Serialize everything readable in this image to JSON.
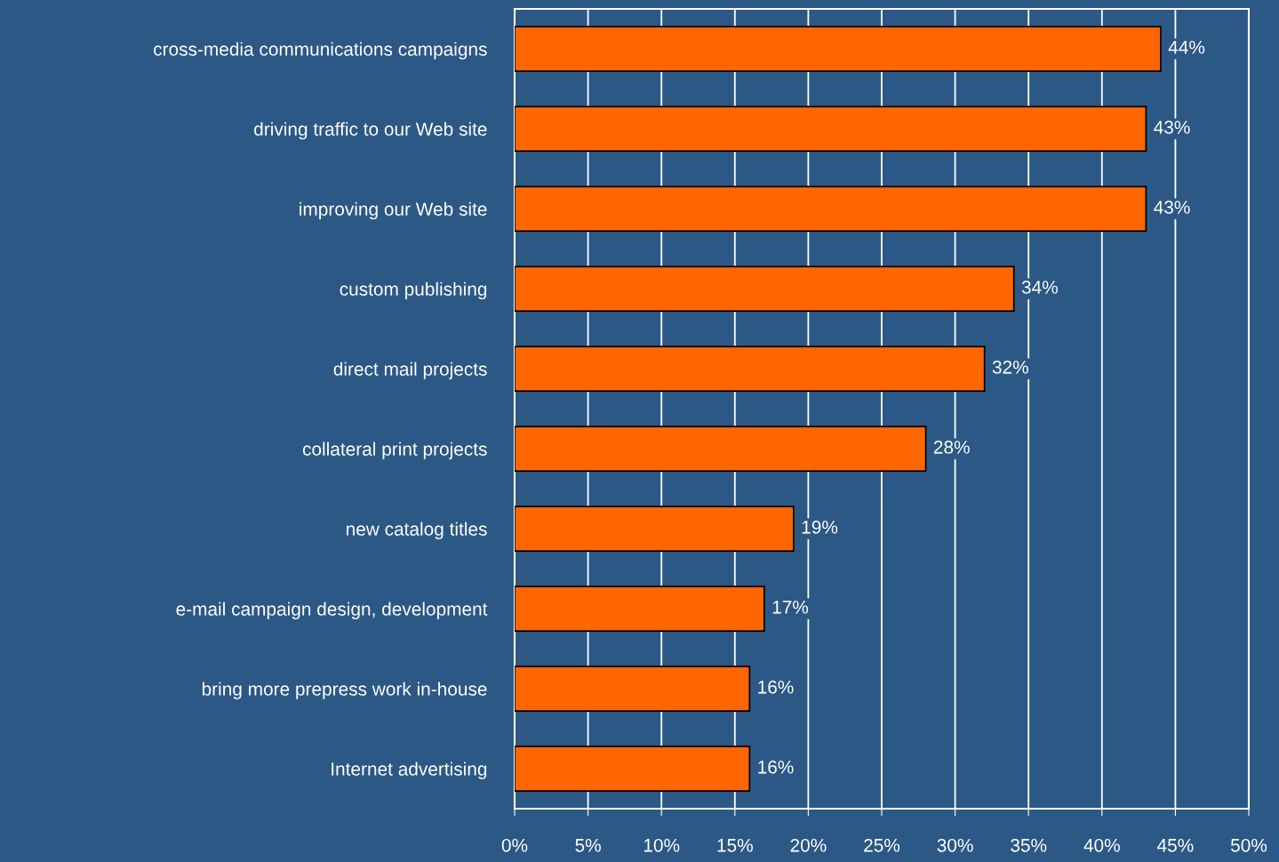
{
  "chart_data": {
    "type": "bar",
    "orientation": "horizontal",
    "categories": [
      "cross-media communications campaigns",
      "driving traffic to our Web site",
      "improving our Web site",
      "custom publishing",
      "direct mail projects",
      "collateral print projects",
      "new catalog titles",
      "e-mail campaign design, development",
      "bring more prepress work in-house",
      "Internet advertising"
    ],
    "values": [
      44,
      43,
      43,
      34,
      32,
      28,
      19,
      17,
      16,
      16
    ],
    "value_labels": [
      "44%",
      "43%",
      "43%",
      "34%",
      "32%",
      "28%",
      "19%",
      "17%",
      "16%",
      "16%"
    ],
    "color": "#ff6600",
    "xlim": [
      0,
      50
    ],
    "xticks": [
      {
        "value": 0,
        "label": "0%"
      },
      {
        "value": 5,
        "label": "5%"
      },
      {
        "value": 10,
        "label": "10%"
      },
      {
        "value": 15,
        "label": "15%"
      },
      {
        "value": 20,
        "label": "20%"
      },
      {
        "value": 25,
        "label": "25%"
      },
      {
        "value": 30,
        "label": "30%"
      },
      {
        "value": 35,
        "label": "35%"
      },
      {
        "value": 40,
        "label": "40%"
      },
      {
        "value": 45,
        "label": "45%"
      },
      {
        "value": 50,
        "label": "50%"
      }
    ],
    "grid": "x"
  }
}
